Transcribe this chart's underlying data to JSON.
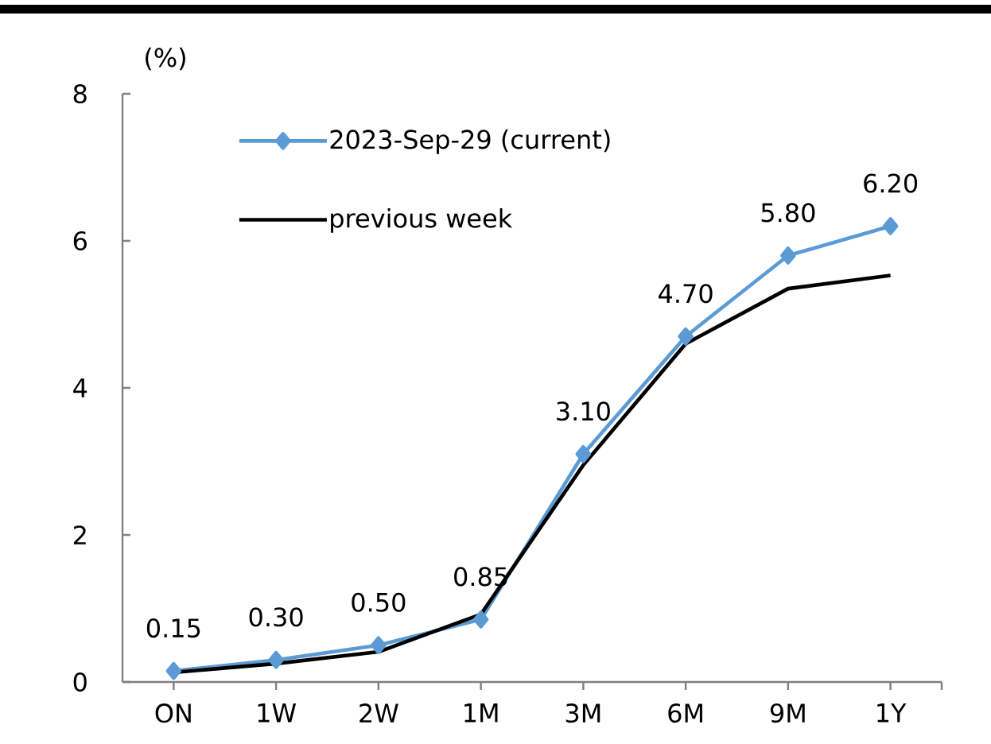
{
  "chart_data": {
    "type": "line",
    "ylabel": "(%)",
    "categories": [
      "ON",
      "1W",
      "2W",
      "1M",
      "3M",
      "6M",
      "9M",
      "1Y"
    ],
    "series": [
      {
        "name": "2023-Sep-29 (current)",
        "color": "#5b9bd5",
        "marker": "diamond",
        "values": [
          0.15,
          0.3,
          0.5,
          0.85,
          3.1,
          4.7,
          5.8,
          6.2
        ],
        "value_labels": [
          "0.15",
          "0.30",
          "0.50",
          "0.85",
          "3.10",
          "4.70",
          "5.80",
          "6.20"
        ]
      },
      {
        "name": "previous week",
        "color": "#000000",
        "marker": "none",
        "values": [
          0.13,
          0.25,
          0.41,
          0.92,
          2.95,
          4.6,
          5.35,
          5.53
        ]
      }
    ],
    "ylim": [
      0,
      8
    ],
    "yticks": [
      0,
      2,
      4,
      6,
      8
    ],
    "legend": "top left"
  }
}
